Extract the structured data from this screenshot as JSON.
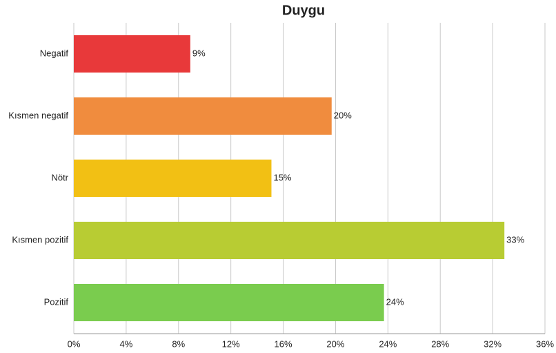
{
  "chart_data": {
    "type": "bar",
    "orientation": "horizontal",
    "title": "Duygu",
    "categories": [
      "Negatif",
      "Kısmen negatif",
      "Nötr",
      "Kısmen pozitif",
      "Pozitif"
    ],
    "values": [
      8.9,
      19.7,
      15.1,
      32.9,
      23.7
    ],
    "value_labels": [
      "9%",
      "20%",
      "15%",
      "33%",
      "24%"
    ],
    "colors": [
      "#e8393a",
      "#f08c3e",
      "#f2c014",
      "#b8cc33",
      "#7acc4e"
    ],
    "xlim": [
      0,
      36
    ],
    "xticks": [
      {
        "value": 0,
        "label": "0%"
      },
      {
        "value": 4,
        "label": "4%"
      },
      {
        "value": 8,
        "label": "8%"
      },
      {
        "value": 12,
        "label": "12%"
      },
      {
        "value": 16,
        "label": "16%"
      },
      {
        "value": 20,
        "label": "20%"
      },
      {
        "value": 24,
        "label": "24%"
      },
      {
        "value": 28,
        "label": "28%"
      },
      {
        "value": 32,
        "label": "32%"
      },
      {
        "value": 36,
        "label": "36%"
      }
    ],
    "grid": true
  }
}
